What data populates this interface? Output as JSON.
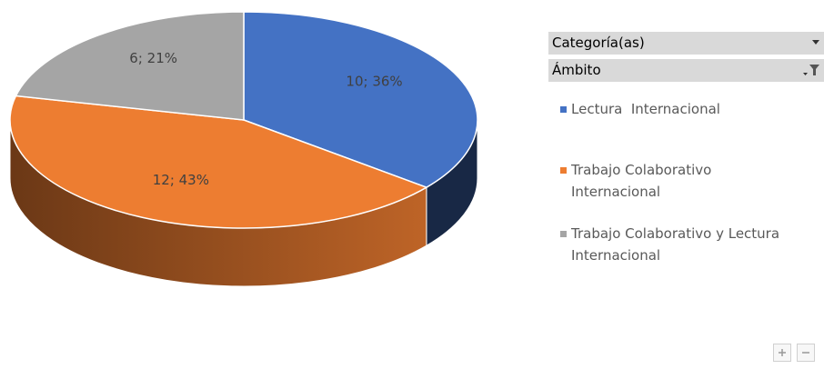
{
  "chart_data": {
    "type": "pie",
    "categories": [
      "Lectura  Internacional",
      "Trabajo Colaborativo Internacional",
      "Trabajo Colaborativo y Lectura Internacional"
    ],
    "values": [
      10,
      12,
      6
    ],
    "value_labels": [
      "10; 36%",
      "12; 43%",
      "6; 21%"
    ],
    "colors": [
      "#4472c4",
      "#ed7d31",
      "#a5a5a5"
    ],
    "field_buttons": [
      "Categoría(as)",
      "Ámbito"
    ]
  }
}
